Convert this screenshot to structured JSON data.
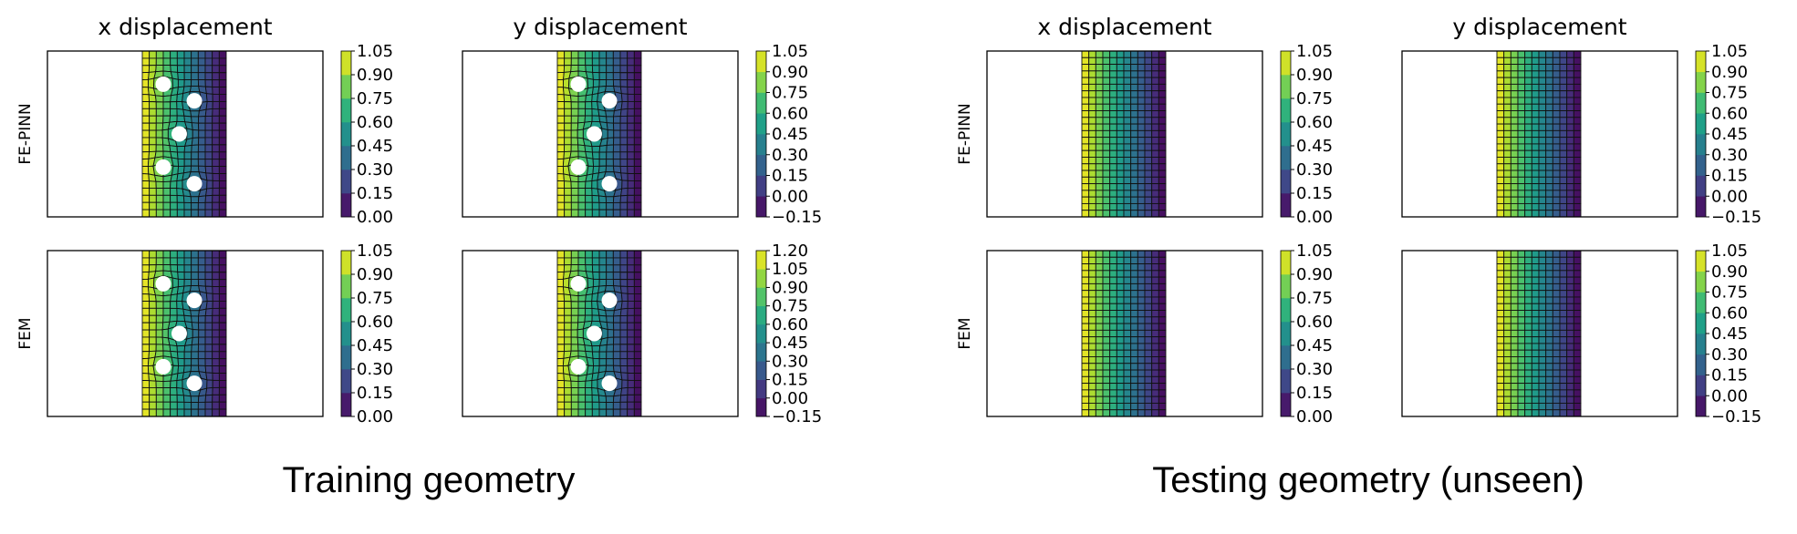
{
  "figure": {
    "groups": [
      {
        "caption": "Training geometry"
      },
      {
        "caption": "Testing geometry (unseen)"
      }
    ],
    "col_titles": [
      "x displacement",
      "y displacement"
    ],
    "row_labels": [
      "FE-PINN",
      "FEM"
    ]
  },
  "chart_data": [
    {
      "type": "heatmap",
      "group": "Training geometry",
      "row": "FE-PINN",
      "title": "x displacement",
      "geometry": "meshed strip with 5 circular holes",
      "colormap": "viridis",
      "colorbar": {
        "ticks": [
          "0.00",
          "0.15",
          "0.30",
          "0.45",
          "0.60",
          "0.75",
          "0.90",
          "1.05"
        ],
        "range": [
          0.0,
          1.05
        ]
      },
      "field_profile": [
        1.05,
        0.0
      ]
    },
    {
      "type": "heatmap",
      "group": "Training geometry",
      "row": "FE-PINN",
      "title": "y displacement",
      "geometry": "meshed strip with 5 circular holes",
      "colormap": "viridis",
      "colorbar": {
        "ticks": [
          "−0.15",
          "0.00",
          "0.15",
          "0.30",
          "0.45",
          "0.60",
          "0.75",
          "0.90",
          "1.05"
        ],
        "range": [
          -0.15,
          1.05
        ]
      },
      "field_profile": [
        1.05,
        -0.15
      ]
    },
    {
      "type": "heatmap",
      "group": "Training geometry",
      "row": "FEM",
      "title": "x displacement",
      "geometry": "meshed strip with 5 circular holes",
      "colormap": "viridis",
      "colorbar": {
        "ticks": [
          "0.00",
          "0.15",
          "0.30",
          "0.45",
          "0.60",
          "0.75",
          "0.90",
          "1.05"
        ],
        "range": [
          0.0,
          1.05
        ]
      },
      "field_profile": [
        1.05,
        0.0
      ]
    },
    {
      "type": "heatmap",
      "group": "Training geometry",
      "row": "FEM",
      "title": "y displacement",
      "geometry": "meshed strip with 5 circular holes",
      "colormap": "viridis",
      "colorbar": {
        "ticks": [
          "−0.15",
          "0.00",
          "0.15",
          "0.30",
          "0.45",
          "0.60",
          "0.75",
          "0.90",
          "1.05",
          "1.20"
        ],
        "range": [
          -0.15,
          1.2
        ]
      },
      "field_profile": [
        1.2,
        -0.15
      ]
    },
    {
      "type": "heatmap",
      "group": "Testing geometry (unseen)",
      "row": "FE-PINN",
      "title": "x displacement",
      "geometry": "regular grid strip",
      "colormap": "viridis",
      "colorbar": {
        "ticks": [
          "0.00",
          "0.15",
          "0.30",
          "0.45",
          "0.60",
          "0.75",
          "0.90",
          "1.05"
        ],
        "range": [
          0.0,
          1.05
        ]
      },
      "field_profile": [
        1.05,
        0.0
      ]
    },
    {
      "type": "heatmap",
      "group": "Testing geometry (unseen)",
      "row": "FE-PINN",
      "title": "y displacement",
      "geometry": "regular grid strip",
      "colormap": "viridis",
      "colorbar": {
        "ticks": [
          "−0.15",
          "0.00",
          "0.15",
          "0.30",
          "0.45",
          "0.60",
          "0.75",
          "0.90",
          "1.05"
        ],
        "range": [
          -0.15,
          1.05
        ]
      },
      "field_profile": [
        1.05,
        -0.15
      ]
    },
    {
      "type": "heatmap",
      "group": "Testing geometry (unseen)",
      "row": "FEM",
      "title": "x displacement",
      "geometry": "regular grid strip",
      "colormap": "viridis",
      "colorbar": {
        "ticks": [
          "0.00",
          "0.15",
          "0.30",
          "0.45",
          "0.60",
          "0.75",
          "0.90",
          "1.05"
        ],
        "range": [
          0.0,
          1.05
        ]
      },
      "field_profile": [
        1.05,
        0.0
      ]
    },
    {
      "type": "heatmap",
      "group": "Testing geometry (unseen)",
      "row": "FEM",
      "title": "y displacement",
      "geometry": "regular grid strip",
      "colormap": "viridis",
      "colorbar": {
        "ticks": [
          "−0.15",
          "0.00",
          "0.15",
          "0.30",
          "0.45",
          "0.60",
          "0.75",
          "0.90",
          "1.05"
        ],
        "range": [
          -0.15,
          1.05
        ]
      },
      "field_profile": [
        1.05,
        -0.15
      ]
    }
  ]
}
